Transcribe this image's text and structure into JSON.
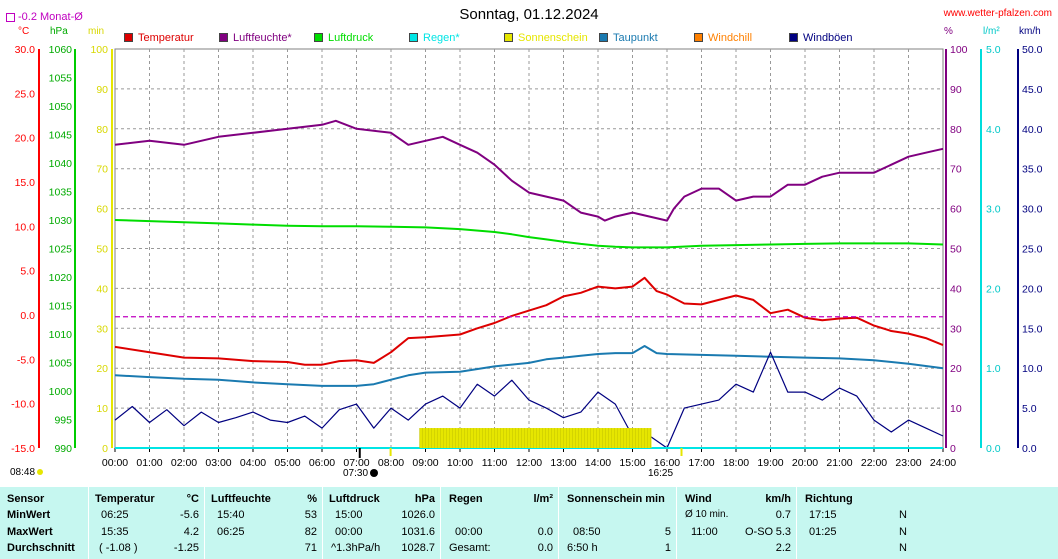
{
  "header": {
    "title": "Sonntag, 01.12.2024",
    "source": "www.wetter-pfalzen.com",
    "avg_label": "-0.2 Monat-Ø"
  },
  "units": {
    "celsius": "°C",
    "hpa": "hPa",
    "min": "min",
    "percent": "%",
    "rain": "l/m²",
    "kmh": "km/h"
  },
  "legend": [
    {
      "label": "Temperatur",
      "color": "#dd0000"
    },
    {
      "label": "Luftfeuchte*",
      "color": "#800080"
    },
    {
      "label": "Luftdruck",
      "color": "#00dd00"
    },
    {
      "label": "Regen*",
      "color": "#00e5e5"
    },
    {
      "label": "Sonnenschein",
      "color": "#e6e600"
    },
    {
      "label": "Taupunkt",
      "color": "#1a7ab0"
    },
    {
      "label": "Windchill",
      "color": "#ff8000"
    },
    {
      "label": "Windböen",
      "color": "#000080"
    }
  ],
  "axes": {
    "temperature": [
      "30.0",
      "25.0",
      "20.0",
      "15.0",
      "10.0",
      "5.0",
      "0.0",
      "-5.0",
      "-10.0",
      "-15.0"
    ],
    "pressure": [
      "1060",
      "1055",
      "1050",
      "1045",
      "1040",
      "1035",
      "1030",
      "1025",
      "1020",
      "1015",
      "1010",
      "1005",
      "1000",
      "995",
      "990"
    ],
    "minutes": [
      "100",
      "90",
      "80",
      "70",
      "60",
      "50",
      "40",
      "30",
      "20",
      "10",
      "0"
    ],
    "humidity": [
      "100",
      "90",
      "80",
      "70",
      "60",
      "50",
      "40",
      "30",
      "20",
      "10",
      "0"
    ],
    "rain": [
      "5.0",
      "4.0",
      "3.0",
      "2.0",
      "1.0",
      "0.0"
    ],
    "wind": [
      "50.0",
      "45.0",
      "40.0",
      "35.0",
      "30.0",
      "25.0",
      "20.0",
      "15.0",
      "10.0",
      "5.0",
      "0.0"
    ],
    "times": [
      "00:00",
      "01:00",
      "02:00",
      "03:00",
      "04:00",
      "05:00",
      "06:00",
      "07:00",
      "08:00",
      "09:00",
      "10:00",
      "11:00",
      "12:00",
      "13:00",
      "14:00",
      "15:00",
      "16:00",
      "17:00",
      "18:00",
      "19:00",
      "20:00",
      "21:00",
      "22:00",
      "23:00",
      "24:00"
    ]
  },
  "sun": {
    "sunrise": "08:48",
    "sunset": "16:25",
    "moon": "07:30"
  },
  "colors": {
    "grid": "#999999",
    "stats_bg": "#c6f7f0",
    "month_avg": "#c000c0"
  },
  "chart_data": {
    "type": "line",
    "title": "Sonntag, 01.12.2024",
    "x_range": [
      "00:00",
      "24:00"
    ],
    "grid": true,
    "legend_position": "top",
    "series": [
      {
        "name": "Temperatur",
        "unit": "°C",
        "range": [
          -15,
          30
        ],
        "x": [
          0,
          1,
          2,
          3,
          4,
          5,
          5.5,
          6,
          6.5,
          7,
          7.5,
          8,
          8.5,
          9,
          10,
          10.5,
          11,
          11.5,
          12,
          12.5,
          13,
          13.5,
          14,
          14.5,
          15,
          15.35,
          15.7,
          16,
          16.5,
          17,
          17.5,
          18,
          18.5,
          19,
          19.5,
          20,
          20.5,
          21,
          21.5,
          22,
          22.5,
          23,
          23.5,
          24
        ],
        "y": [
          -3.6,
          -4.2,
          -4.8,
          -4.9,
          -5.2,
          -5.3,
          -5.6,
          -5.6,
          -5.2,
          -5.1,
          -5.4,
          -4.2,
          -2.6,
          -2.5,
          -2.2,
          -1.5,
          -0.9,
          -0.1,
          0.5,
          1.1,
          2.1,
          2.5,
          3.2,
          3.0,
          3.2,
          4.2,
          2.7,
          2.3,
          1.3,
          1.2,
          1.7,
          2.2,
          1.7,
          0.2,
          0.6,
          -0.3,
          -0.6,
          -0.4,
          -0.3,
          -1.2,
          -1.8,
          -2.1,
          -2.6,
          -3.4
        ]
      },
      {
        "name": "Luftfeuchte*",
        "unit": "%",
        "range": [
          0,
          100
        ],
        "x": [
          0,
          1,
          2,
          3,
          4,
          5,
          6,
          6.4,
          7,
          8,
          8.5,
          9,
          9.5,
          10,
          10.5,
          11,
          11.5,
          12,
          12.5,
          13,
          13.5,
          14,
          14.2,
          14.5,
          15,
          15.5,
          16,
          16.2,
          16.5,
          17,
          17.5,
          18,
          18.5,
          19,
          19.5,
          20,
          20.5,
          21,
          21.5,
          22,
          22.5,
          23,
          23.5,
          24
        ],
        "y": [
          76,
          77,
          76,
          78,
          79,
          80,
          81,
          82,
          80,
          79,
          76,
          77,
          78,
          76,
          74,
          71,
          67,
          64,
          63,
          62,
          59,
          58,
          57,
          58,
          59,
          58,
          57,
          60,
          63,
          65,
          65,
          62,
          63,
          63,
          66,
          66,
          68,
          69,
          69,
          69,
          71,
          73,
          74,
          75
        ]
      },
      {
        "name": "Luftdruck",
        "unit": "hPa",
        "range": [
          990,
          1060
        ],
        "x": [
          0,
          1,
          2,
          3,
          4,
          5,
          6,
          7,
          8,
          9,
          10,
          11,
          11.5,
          12,
          12.5,
          13,
          13.5,
          14,
          14.5,
          15,
          16,
          17,
          18,
          19,
          20,
          21,
          22,
          23,
          24
        ],
        "y": [
          1030.0,
          1029.8,
          1029.6,
          1029.4,
          1029.2,
          1029.0,
          1028.9,
          1028.9,
          1028.8,
          1028.7,
          1028.4,
          1027.9,
          1027.5,
          1027.0,
          1026.6,
          1026.2,
          1025.8,
          1025.5,
          1025.3,
          1025.2,
          1025.2,
          1025.5,
          1025.6,
          1025.7,
          1025.8,
          1025.9,
          1025.9,
          1025.9,
          1025.7
        ]
      },
      {
        "name": "Taupunkt",
        "unit": "°C",
        "range": [
          -15,
          30
        ],
        "x": [
          0,
          1,
          2,
          3,
          4,
          5,
          6,
          7,
          7.5,
          8,
          8.5,
          9,
          10,
          11,
          12,
          12.5,
          13,
          13.5,
          14,
          14.5,
          15,
          15.35,
          15.7,
          16,
          17,
          18,
          19,
          20,
          21,
          22,
          23,
          24
        ],
        "y": [
          -6.8,
          -7.0,
          -7.2,
          -7.3,
          -7.6,
          -7.8,
          -8.0,
          -8.0,
          -7.8,
          -7.3,
          -6.8,
          -6.5,
          -6.4,
          -5.8,
          -5.4,
          -5.0,
          -4.8,
          -4.6,
          -4.4,
          -4.3,
          -4.3,
          -3.5,
          -4.3,
          -4.4,
          -4.5,
          -4.6,
          -4.7,
          -4.8,
          -4.9,
          -5.1,
          -5.5,
          -6.0
        ]
      },
      {
        "name": "Windböen",
        "unit": "km/h",
        "range": [
          0,
          50
        ],
        "x": [
          0,
          0.5,
          1,
          1.5,
          2,
          2.5,
          3,
          3.5,
          4,
          4.5,
          5,
          5.5,
          6,
          6.5,
          7,
          7.5,
          8,
          8.5,
          9,
          9.5,
          10,
          10.5,
          11,
          11.5,
          12,
          12.5,
          13,
          13.5,
          14,
          14.5,
          15,
          15.5,
          16,
          16.5,
          17,
          17.5,
          18,
          18.5,
          19,
          19.5,
          20,
          20.5,
          21,
          21.5,
          22,
          22.5,
          23,
          23.5,
          24
        ],
        "y": [
          3.5,
          5.2,
          3.2,
          4.8,
          2.8,
          4.5,
          3.2,
          3.8,
          4.5,
          3.5,
          3.2,
          4.0,
          2.5,
          4.8,
          5.5,
          2.5,
          5.0,
          3.5,
          5.5,
          6.5,
          5.0,
          8.0,
          6.5,
          8.5,
          6.0,
          5.0,
          3.8,
          4.5,
          7.0,
          5.5,
          1.5,
          1.5,
          0.0,
          5.0,
          5.5,
          6.0,
          8.0,
          7.0,
          12.0,
          7.0,
          7.0,
          6.0,
          7.5,
          6.5,
          3.5,
          2.0,
          3.5,
          2.5,
          1.5
        ]
      },
      {
        "name": "Regen*",
        "unit": "l/m²",
        "range": [
          0,
          5
        ],
        "x": [
          0,
          24
        ],
        "y": [
          0,
          0
        ]
      },
      {
        "name": "Sonnenschein",
        "unit": "min",
        "range": [
          0,
          100
        ],
        "x": [
          8.83,
          9,
          10,
          11,
          12,
          13,
          14,
          15,
          15.55
        ],
        "y": [
          5,
          5,
          5,
          5,
          5,
          5,
          5,
          5,
          5
        ]
      }
    ],
    "reference_lines": [
      {
        "label": "-0.2 Monat-Ø",
        "value": -0.2,
        "unit": "°C"
      }
    ]
  },
  "stats": {
    "headers": {
      "sensor": "Sensor",
      "temp": "Temperatur",
      "temp_u": "°C",
      "hum": "Luftfeuchte",
      "hum_u": "%",
      "press": "Luftdruck",
      "press_u": "hPa",
      "rain": "Regen",
      "rain_u": "l/m²",
      "sun": "Sonnenschein min",
      "wind": "Wind",
      "wind_u": "km/h",
      "dir": "Richtung"
    },
    "rows": [
      {
        "label": "MinWert",
        "temp_t": "06:25",
        "temp_v": "-5.6",
        "hum_t": "15:40",
        "hum_v": "53",
        "press_t": "15:00",
        "press_v": "1026.0",
        "rain_t": "",
        "rain_v": "",
        "sun_t": "",
        "sun_v": "",
        "wind_t": "Ø 10 min.",
        "wind_d": "",
        "wind_v": "0.7",
        "dir_t": "17:15",
        "dir_v": "N"
      },
      {
        "label": "MaxWert",
        "temp_t": "15:35",
        "temp_v": "4.2",
        "hum_t": "06:25",
        "hum_v": "82",
        "press_t": "00:00",
        "press_v": "1031.6",
        "rain_t": "00:00",
        "rain_v": "0.0",
        "sun_t": "08:50",
        "sun_v": "5",
        "wind_t": "11:00",
        "wind_d": "O-SO",
        "wind_v": "5.3",
        "dir_t": "01:25",
        "dir_v": "N"
      },
      {
        "label": "Durchschnitt",
        "temp_t": "( -1.08 )",
        "temp_v": "-1.25",
        "hum_t": "",
        "hum_v": "71",
        "press_t": "^1.3hPa/h",
        "press_v": "1028.7",
        "rain_t": "Gesamt:",
        "rain_v": "0.0",
        "sun_t": "6:50 h",
        "sun_v": "1",
        "wind_t": "",
        "wind_d": "",
        "wind_v": "2.2",
        "dir_t": "",
        "dir_v": "N"
      }
    ]
  }
}
